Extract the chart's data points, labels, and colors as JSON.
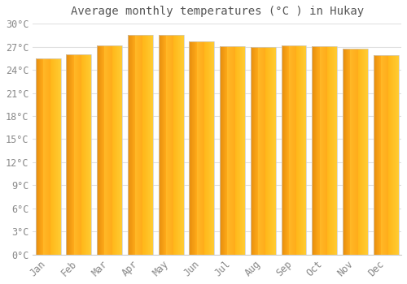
{
  "title": "Average monthly temperatures (°C ) in Hukay",
  "months": [
    "Jan",
    "Feb",
    "Mar",
    "Apr",
    "May",
    "Jun",
    "Jul",
    "Aug",
    "Sep",
    "Oct",
    "Nov",
    "Dec"
  ],
  "temperatures": [
    25.5,
    26.0,
    27.2,
    28.5,
    28.5,
    27.7,
    27.1,
    26.9,
    27.2,
    27.1,
    26.7,
    25.9
  ],
  "ylim": [
    0,
    30
  ],
  "yticks": [
    0,
    3,
    6,
    9,
    12,
    15,
    18,
    21,
    24,
    27,
    30
  ],
  "bar_color_main": "#FFA726",
  "bar_color_left": "#E65100",
  "bar_color_right": "#FFD54F",
  "bar_edge_color": "#E0E0E0",
  "background_color": "#FFFFFF",
  "grid_color": "#E0E0E0",
  "title_fontsize": 10,
  "tick_fontsize": 8.5,
  "title_color": "#555555",
  "tick_color": "#888888"
}
